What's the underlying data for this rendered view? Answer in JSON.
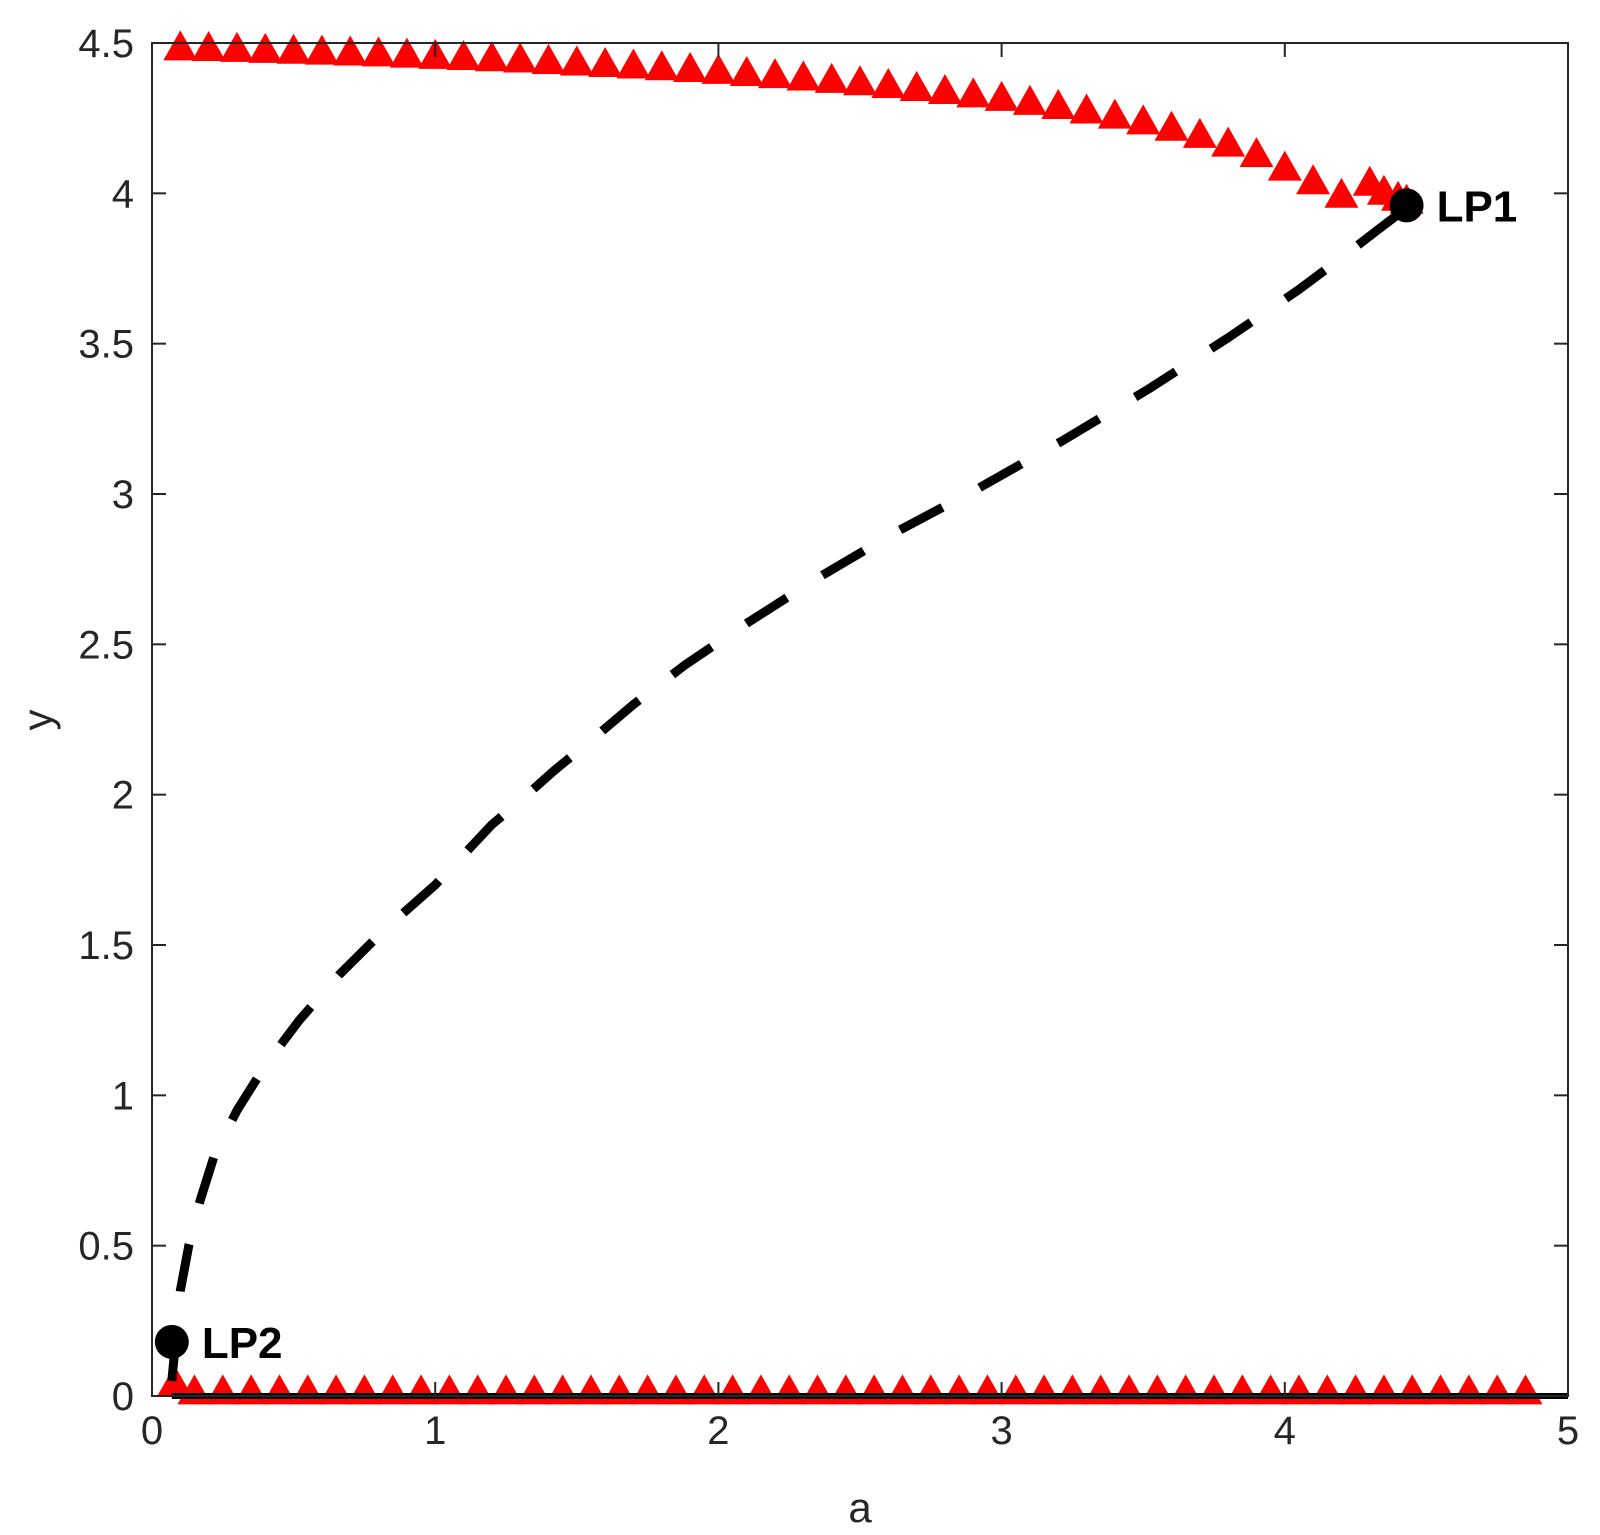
{
  "chart_data": {
    "type": "line",
    "xlabel": "a",
    "ylabel": "y",
    "xlim": [
      0,
      5
    ],
    "ylim": [
      0,
      4.5
    ],
    "xticks": [
      "0",
      "1",
      "2",
      "3",
      "4",
      "5"
    ],
    "yticks": [
      "0",
      "0.5",
      "1",
      "1.5",
      "2",
      "2.5",
      "3",
      "3.5",
      "4",
      "4.5"
    ],
    "grid": false,
    "series": [
      {
        "style": "triangle-markers",
        "color": "#ff0000",
        "x": [
          0.1,
          0.2,
          0.3,
          0.4,
          0.5,
          0.6,
          0.7,
          0.8,
          0.9,
          1.0,
          1.1,
          1.2,
          1.3,
          1.4,
          1.5,
          1.6,
          1.7,
          1.8,
          1.9,
          2.0,
          2.1,
          2.2,
          2.3,
          2.4,
          2.5,
          2.6,
          2.7,
          2.8,
          2.9,
          3.0,
          3.1,
          3.2,
          3.3,
          3.4,
          3.5,
          3.6,
          3.7,
          3.8,
          3.9,
          4.0,
          4.1,
          4.2,
          4.3,
          4.35,
          4.4,
          4.43
        ],
        "y": [
          4.48,
          4.478,
          4.475,
          4.472,
          4.469,
          4.466,
          4.463,
          4.46,
          4.456,
          4.452,
          4.448,
          4.444,
          4.44,
          4.435,
          4.43,
          4.425,
          4.42,
          4.414,
          4.408,
          4.402,
          4.395,
          4.388,
          4.38,
          4.372,
          4.364,
          4.355,
          4.345,
          4.335,
          4.324,
          4.312,
          4.299,
          4.285,
          4.27,
          4.253,
          4.234,
          4.213,
          4.189,
          4.16,
          4.125,
          4.08,
          4.035,
          3.99,
          4.03,
          4.0,
          3.98,
          3.97
        ]
      },
      {
        "style": "triangle-markers",
        "color": "#ff0000",
        "x": [
          0.08,
          0.15,
          0.25,
          0.35,
          0.45,
          0.55,
          0.65,
          0.75,
          0.85,
          0.95,
          1.05,
          1.15,
          1.25,
          1.35,
          1.45,
          1.55,
          1.65,
          1.75,
          1.85,
          1.95,
          2.05,
          2.15,
          2.25,
          2.35,
          2.45,
          2.55,
          2.65,
          2.75,
          2.85,
          2.95,
          3.05,
          3.15,
          3.25,
          3.35,
          3.45,
          3.55,
          3.65,
          3.75,
          3.85,
          3.95,
          4.05,
          4.15,
          4.25,
          4.35,
          4.45,
          4.55,
          4.65,
          4.75,
          4.85
        ],
        "y": [
          0.04,
          0.01,
          0.01,
          0.01,
          0.01,
          0.01,
          0.01,
          0.01,
          0.01,
          0.01,
          0.01,
          0.01,
          0.01,
          0.01,
          0.01,
          0.01,
          0.01,
          0.01,
          0.01,
          0.01,
          0.01,
          0.01,
          0.01,
          0.01,
          0.01,
          0.01,
          0.01,
          0.01,
          0.01,
          0.01,
          0.01,
          0.01,
          0.01,
          0.01,
          0.01,
          0.01,
          0.01,
          0.01,
          0.01,
          0.01,
          0.01,
          0.01,
          0.01,
          0.01,
          0.01,
          0.01,
          0.01,
          0.01,
          0.01
        ]
      },
      {
        "style": "dashed",
        "color": "#000000",
        "x": [
          0.07,
          0.085,
          0.1,
          0.13,
          0.17,
          0.22,
          0.3,
          0.4,
          0.52,
          0.66,
          0.82,
          1.0,
          1.1,
          1.2,
          1.3,
          1.42,
          1.55,
          1.7,
          1.88,
          2.1,
          2.35,
          2.62,
          2.92,
          3.22,
          3.52,
          3.8,
          4.05,
          4.22,
          4.33,
          4.4,
          4.43
        ],
        "y": [
          0.05,
          0.2,
          0.35,
          0.5,
          0.65,
          0.8,
          0.95,
          1.1,
          1.25,
          1.4,
          1.55,
          1.7,
          1.8,
          1.9,
          1.98,
          2.08,
          2.18,
          2.3,
          2.43,
          2.57,
          2.72,
          2.87,
          3.02,
          3.18,
          3.35,
          3.52,
          3.68,
          3.8,
          3.88,
          3.93,
          3.96
        ]
      },
      {
        "style": "solid",
        "color": "#000000",
        "x": [
          0.07,
          5.0
        ],
        "y": [
          0.0,
          0.0
        ]
      }
    ],
    "points": [
      {
        "label": "LP1",
        "x": 4.43,
        "y": 3.96
      },
      {
        "label": "LP2",
        "x": 0.07,
        "y": 0.18
      }
    ]
  }
}
